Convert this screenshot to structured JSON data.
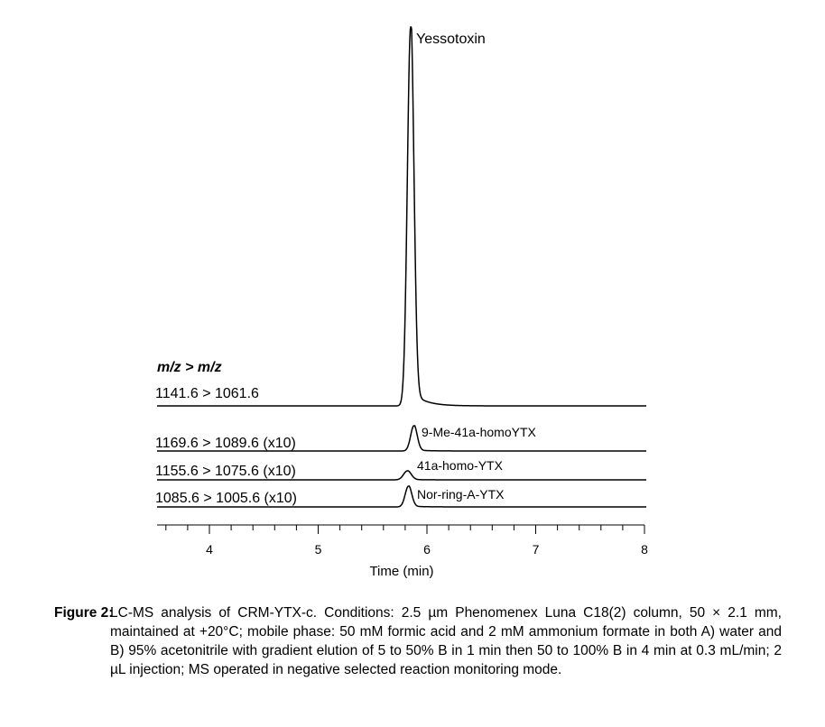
{
  "chart_data": {
    "type": "line",
    "title": "",
    "xlabel": "Time (min)",
    "ylabel": "",
    "xlim": [
      3.52,
      8
    ],
    "xticks": [
      4,
      5,
      6,
      7,
      8
    ],
    "xtick_labels": [
      "4",
      "5",
      "6",
      "7",
      "8"
    ],
    "minor_tick_step": 0.2,
    "grid": false,
    "legend_header": "m/z > m/z",
    "series": [
      {
        "name": "1141.6 > 1061.6",
        "peak_label": "Yessotoxin",
        "retention_time": 5.85,
        "relative_height": 1.0
      },
      {
        "name": "1169.6 > 1089.6 (x10)",
        "peak_label": "9-Me-41a-homoYTX",
        "retention_time": 5.88,
        "relative_height": 0.067
      },
      {
        "name": "1155.6 > 1075.6 (x10)",
        "peak_label": "41a-homo-YTX",
        "retention_time": 5.82,
        "relative_height": 0.022
      },
      {
        "name": "1085.6 > 1005.6 (x10)",
        "peak_label": "Nor-ring-A-YTX",
        "retention_time": 5.83,
        "relative_height": 0.055
      }
    ]
  },
  "caption": {
    "label": "Figure 2:",
    "text": "LC-MS analysis of CRM-YTX-c. Conditions: 2.5 µm Phenomenex Luna C18(2) column, 50 × 2.1 mm, maintained at +20°C; mobile phase: 50 mM formic acid and 2 mM ammonium formate in both A) water and B) 95% acetonitrile with gradient elution of 5 to 50% B in 1 min then 50 to 100% B in 4 min at 0.3 mL/min; 2 µL injection; MS operated in negative selected reaction monitoring mode."
  }
}
